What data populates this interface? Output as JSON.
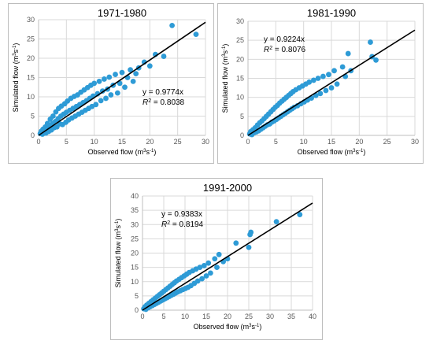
{
  "chart_data": [
    {
      "type": "scatter",
      "title": "1971-1980",
      "xlabel": "Observed flow (m3s-1)",
      "ylabel": "Simulated flow (m3s-1)",
      "xlim": [
        0,
        30
      ],
      "ylim": [
        0,
        30
      ],
      "xticks": [
        0,
        5,
        10,
        15,
        20,
        25,
        30
      ],
      "yticks": [
        0,
        5,
        10,
        15,
        20,
        25,
        30
      ],
      "grid": true,
      "point_color": "#2e9bd6",
      "fit_line_color": "#000000",
      "equation": "y = 0.9774x",
      "r2_prefix": "R",
      "r2_value": " = 0.8038",
      "slope": 0.9774,
      "points": [
        [
          0.3,
          0.5
        ],
        [
          0.5,
          1.1
        ],
        [
          0.7,
          0.3
        ],
        [
          0.8,
          1.6
        ],
        [
          1.0,
          0.9
        ],
        [
          1.2,
          2.2
        ],
        [
          1.3,
          0.6
        ],
        [
          1.5,
          1.5
        ],
        [
          1.6,
          3.1
        ],
        [
          1.8,
          1.0
        ],
        [
          2.0,
          2.5
        ],
        [
          2.1,
          4.2
        ],
        [
          2.3,
          1.4
        ],
        [
          2.5,
          3.0
        ],
        [
          2.6,
          5.0
        ],
        [
          2.8,
          2.0
        ],
        [
          3.0,
          3.6
        ],
        [
          3.1,
          6.1
        ],
        [
          3.3,
          2.2
        ],
        [
          3.5,
          4.3
        ],
        [
          3.6,
          7.0
        ],
        [
          3.8,
          3.0
        ],
        [
          4.0,
          5.0
        ],
        [
          4.1,
          7.6
        ],
        [
          4.3,
          2.8
        ],
        [
          4.5,
          5.5
        ],
        [
          4.7,
          8.2
        ],
        [
          4.9,
          3.4
        ],
        [
          5.0,
          6.0
        ],
        [
          5.2,
          8.9
        ],
        [
          5.4,
          4.0
        ],
        [
          5.6,
          6.5
        ],
        [
          5.8,
          9.6
        ],
        [
          6.0,
          4.5
        ],
        [
          6.2,
          7.0
        ],
        [
          6.4,
          10.1
        ],
        [
          6.6,
          5.0
        ],
        [
          6.8,
          7.5
        ],
        [
          7.0,
          10.5
        ],
        [
          7.2,
          5.5
        ],
        [
          7.4,
          8.0
        ],
        [
          7.6,
          11.2
        ],
        [
          7.8,
          6.0
        ],
        [
          8.0,
          8.5
        ],
        [
          8.2,
          11.8
        ],
        [
          8.4,
          6.5
        ],
        [
          8.6,
          9.0
        ],
        [
          8.8,
          12.4
        ],
        [
          9.0,
          7.0
        ],
        [
          9.2,
          9.6
        ],
        [
          9.4,
          13.0
        ],
        [
          9.6,
          7.5
        ],
        [
          9.8,
          10.2
        ],
        [
          10.0,
          13.5
        ],
        [
          10.3,
          8.0
        ],
        [
          10.6,
          10.8
        ],
        [
          10.9,
          14.0
        ],
        [
          11.2,
          9.0
        ],
        [
          11.5,
          11.5
        ],
        [
          11.8,
          14.6
        ],
        [
          12.1,
          9.6
        ],
        [
          12.4,
          12.0
        ],
        [
          12.7,
          15.1
        ],
        [
          13.0,
          10.5
        ],
        [
          13.4,
          13.0
        ],
        [
          13.8,
          15.8
        ],
        [
          14.2,
          11.0
        ],
        [
          14.6,
          13.5
        ],
        [
          15.0,
          16.3
        ],
        [
          15.5,
          12.5
        ],
        [
          16.0,
          15.0
        ],
        [
          16.5,
          17.0
        ],
        [
          17.0,
          14.0
        ],
        [
          17.5,
          16.0
        ],
        [
          18.0,
          17.5
        ],
        [
          19.0,
          19.0
        ],
        [
          20.0,
          18.0
        ],
        [
          21.0,
          21.0
        ],
        [
          22.5,
          20.5
        ],
        [
          24.0,
          28.5
        ],
        [
          28.3,
          26.2
        ]
      ]
    },
    {
      "type": "scatter",
      "title": "1981-1990",
      "xlabel": "Observed flow (m3s-1)",
      "ylabel": "Simulated flow (m3s-1)",
      "xlim": [
        0,
        30
      ],
      "ylim": [
        0,
        30
      ],
      "xticks": [
        0,
        5,
        10,
        15,
        20,
        25,
        30
      ],
      "yticks": [
        0,
        5,
        10,
        15,
        20,
        25,
        30
      ],
      "grid": true,
      "point_color": "#2e9bd6",
      "fit_line_color": "#000000",
      "equation": "y = 0.9224x",
      "r2_prefix": "R",
      "r2_value": " = 0.8076",
      "slope": 0.9224,
      "points": [
        [
          0.3,
          0.4
        ],
        [
          0.5,
          1.0
        ],
        [
          0.7,
          0.2
        ],
        [
          0.9,
          1.5
        ],
        [
          1.1,
          0.7
        ],
        [
          1.3,
          2.0
        ],
        [
          1.5,
          0.9
        ],
        [
          1.7,
          2.7
        ],
        [
          1.9,
          1.2
        ],
        [
          2.1,
          3.3
        ],
        [
          2.3,
          1.6
        ],
        [
          2.5,
          3.8
        ],
        [
          2.7,
          2.0
        ],
        [
          2.9,
          4.4
        ],
        [
          3.1,
          2.4
        ],
        [
          3.3,
          5.0
        ],
        [
          3.5,
          2.8
        ],
        [
          3.7,
          5.6
        ],
        [
          3.9,
          3.0
        ],
        [
          4.1,
          6.2
        ],
        [
          4.3,
          3.5
        ],
        [
          4.5,
          6.8
        ],
        [
          4.7,
          3.8
        ],
        [
          4.9,
          7.4
        ],
        [
          5.1,
          4.2
        ],
        [
          5.3,
          7.9
        ],
        [
          5.5,
          4.6
        ],
        [
          5.7,
          8.5
        ],
        [
          5.9,
          5.0
        ],
        [
          6.1,
          9.0
        ],
        [
          6.3,
          5.4
        ],
        [
          6.5,
          9.5
        ],
        [
          6.7,
          5.8
        ],
        [
          6.9,
          10.0
        ],
        [
          7.1,
          6.2
        ],
        [
          7.3,
          10.5
        ],
        [
          7.5,
          6.6
        ],
        [
          7.7,
          11.0
        ],
        [
          7.9,
          7.0
        ],
        [
          8.1,
          11.5
        ],
        [
          8.3,
          7.4
        ],
        [
          8.6,
          12.0
        ],
        [
          8.9,
          7.8
        ],
        [
          9.2,
          12.5
        ],
        [
          9.5,
          8.3
        ],
        [
          9.8,
          13.0
        ],
        [
          10.1,
          8.8
        ],
        [
          10.4,
          13.5
        ],
        [
          10.7,
          9.3
        ],
        [
          11.0,
          14.0
        ],
        [
          11.4,
          9.8
        ],
        [
          11.8,
          14.5
        ],
        [
          12.2,
          10.5
        ],
        [
          12.6,
          15.0
        ],
        [
          13.0,
          11.0
        ],
        [
          13.5,
          15.5
        ],
        [
          14.0,
          11.8
        ],
        [
          14.5,
          16.0
        ],
        [
          15.0,
          12.5
        ],
        [
          15.5,
          17.0
        ],
        [
          16.0,
          13.5
        ],
        [
          17.0,
          18.0
        ],
        [
          17.5,
          15.5
        ],
        [
          18.0,
          21.5
        ],
        [
          18.5,
          17.0
        ],
        [
          22.0,
          24.5
        ],
        [
          22.3,
          20.7
        ],
        [
          23.0,
          19.8
        ]
      ]
    },
    {
      "type": "scatter",
      "title": "1991-2000",
      "xlabel": "Observed flow (m3s-1)",
      "ylabel": "Simulated flow (m3s-1)",
      "xlim": [
        0,
        40
      ],
      "ylim": [
        0,
        40
      ],
      "xticks": [
        0,
        5,
        10,
        15,
        20,
        25,
        30,
        35,
        40
      ],
      "yticks": [
        0,
        5,
        10,
        15,
        20,
        25,
        30,
        35,
        40
      ],
      "grid": true,
      "point_color": "#2e9bd6",
      "fit_line_color": "#000000",
      "equation": "y = 0.9383x",
      "r2_prefix": "R",
      "r2_value": " = 0.8194",
      "slope": 0.9383,
      "points": [
        [
          0.3,
          0.5
        ],
        [
          0.6,
          1.2
        ],
        [
          0.8,
          0.3
        ],
        [
          1.0,
          1.8
        ],
        [
          1.3,
          0.8
        ],
        [
          1.5,
          2.4
        ],
        [
          1.8,
          1.2
        ],
        [
          2.0,
          3.0
        ],
        [
          2.3,
          1.6
        ],
        [
          2.5,
          3.6
        ],
        [
          2.8,
          2.0
        ],
        [
          3.0,
          4.2
        ],
        [
          3.3,
          2.4
        ],
        [
          3.5,
          4.8
        ],
        [
          3.8,
          2.8
        ],
        [
          4.0,
          5.4
        ],
        [
          4.3,
          3.2
        ],
        [
          4.5,
          6.0
        ],
        [
          4.8,
          3.6
        ],
        [
          5.0,
          6.6
        ],
        [
          5.3,
          4.0
        ],
        [
          5.5,
          7.2
        ],
        [
          5.8,
          4.4
        ],
        [
          6.0,
          7.8
        ],
        [
          6.3,
          4.8
        ],
        [
          6.5,
          8.4
        ],
        [
          6.8,
          5.2
        ],
        [
          7.0,
          9.0
        ],
        [
          7.3,
          5.6
        ],
        [
          7.5,
          9.6
        ],
        [
          7.8,
          6.0
        ],
        [
          8.0,
          10.2
        ],
        [
          8.3,
          6.4
        ],
        [
          8.6,
          10.8
        ],
        [
          8.9,
          6.8
        ],
        [
          9.2,
          11.4
        ],
        [
          9.5,
          7.2
        ],
        [
          9.8,
          12.0
        ],
        [
          10.1,
          7.6
        ],
        [
          10.4,
          12.6
        ],
        [
          10.7,
          8.0
        ],
        [
          11.0,
          13.2
        ],
        [
          11.4,
          8.6
        ],
        [
          11.8,
          13.8
        ],
        [
          12.2,
          9.4
        ],
        [
          12.6,
          14.4
        ],
        [
          13.0,
          10.2
        ],
        [
          13.5,
          15.0
        ],
        [
          14.0,
          11.0
        ],
        [
          14.5,
          15.6
        ],
        [
          15.0,
          12.0
        ],
        [
          15.5,
          16.5
        ],
        [
          16.0,
          13.0
        ],
        [
          17.0,
          18.0
        ],
        [
          17.5,
          15.0
        ],
        [
          18.0,
          19.5
        ],
        [
          19.0,
          17.0
        ],
        [
          20.0,
          18.0
        ],
        [
          22.0,
          23.5
        ],
        [
          25.0,
          22.0
        ],
        [
          25.3,
          26.5
        ],
        [
          25.5,
          27.3
        ],
        [
          31.5,
          31.0
        ],
        [
          37.0,
          33.5
        ]
      ]
    }
  ]
}
